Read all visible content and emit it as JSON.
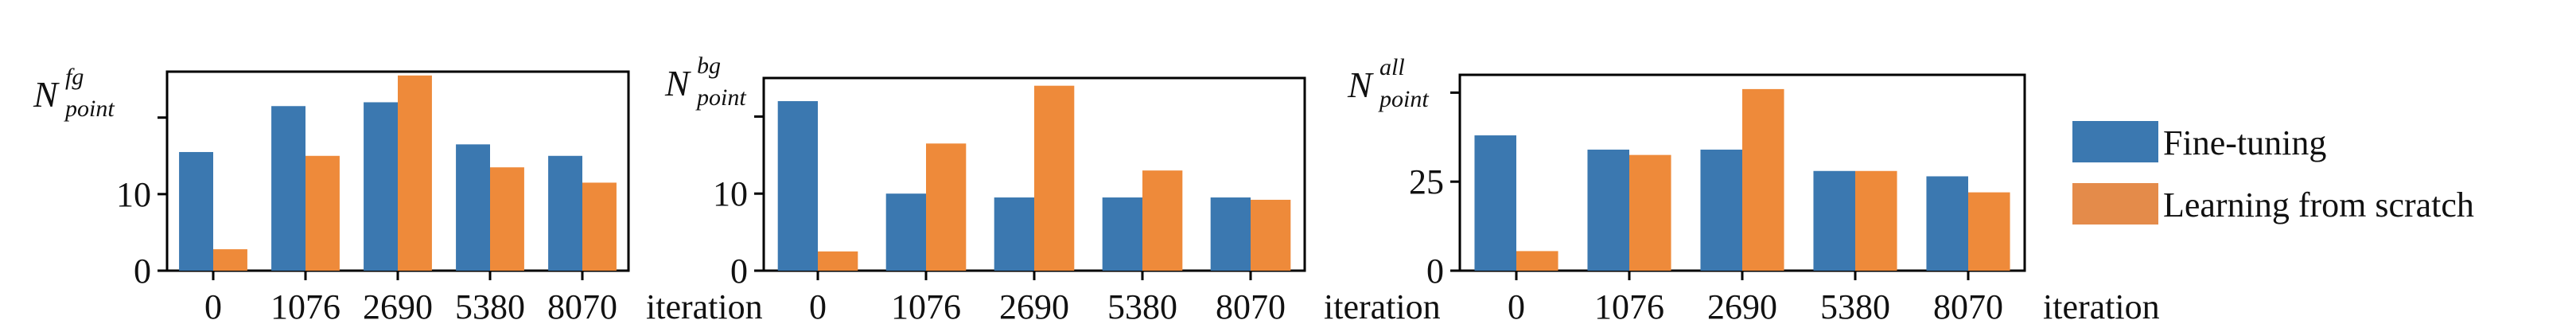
{
  "colors": {
    "fine_tuning": "#3b78b0",
    "learning_from_scratch": "#ee8a3a",
    "legend_scratch_swatch": "#e48b4a",
    "axes": "#000000"
  },
  "legend": {
    "items": [
      {
        "label": "Fine-tuning",
        "color": "#3b78b0"
      },
      {
        "label": "Learning from scratch",
        "color": "#e48b4a"
      }
    ],
    "placement": "right"
  },
  "chart_data": [
    {
      "type": "bar",
      "ylabel": {
        "base": "N",
        "sup": "fg",
        "sub": "point"
      },
      "xlabel": "iteration",
      "categories": [
        "0",
        "1076",
        "2690",
        "5380",
        "8070"
      ],
      "ylim": [
        0,
        26
      ],
      "yticks": [
        0,
        10,
        20
      ],
      "ytick_labels": [
        "0",
        "10",
        ""
      ],
      "series": [
        {
          "name": "Fine-tuning",
          "values": [
            15.5,
            21.5,
            22.0,
            16.5,
            15.0
          ]
        },
        {
          "name": "Learning from scratch",
          "values": [
            2.8,
            15.0,
            25.5,
            13.5,
            11.5
          ]
        }
      ]
    },
    {
      "type": "bar",
      "ylabel": {
        "base": "N",
        "sup": "bg",
        "sub": "point"
      },
      "xlabel": "iteration",
      "categories": [
        "0",
        "1076",
        "2690",
        "5380",
        "8070"
      ],
      "ylim": [
        0,
        25
      ],
      "yticks": [
        0,
        10,
        20
      ],
      "ytick_labels": [
        "0",
        "10",
        ""
      ],
      "series": [
        {
          "name": "Fine-tuning",
          "values": [
            22.0,
            10.0,
            9.5,
            9.5,
            9.5
          ]
        },
        {
          "name": "Learning from scratch",
          "values": [
            2.5,
            16.5,
            24.0,
            13.0,
            9.2
          ]
        }
      ]
    },
    {
      "type": "bar",
      "ylabel": {
        "base": "N",
        "sup": "all",
        "sub": "point"
      },
      "xlabel": "iteration",
      "categories": [
        "0",
        "1076",
        "2690",
        "5380",
        "8070"
      ],
      "ylim": [
        0,
        55
      ],
      "yticks": [
        0,
        25,
        50
      ],
      "ytick_labels": [
        "0",
        "25",
        ""
      ],
      "series": [
        {
          "name": "Fine-tuning",
          "values": [
            38.0,
            34.0,
            34.0,
            28.0,
            26.5
          ]
        },
        {
          "name": "Learning from scratch",
          "values": [
            5.5,
            32.5,
            51.0,
            28.0,
            22.0
          ]
        }
      ]
    }
  ]
}
